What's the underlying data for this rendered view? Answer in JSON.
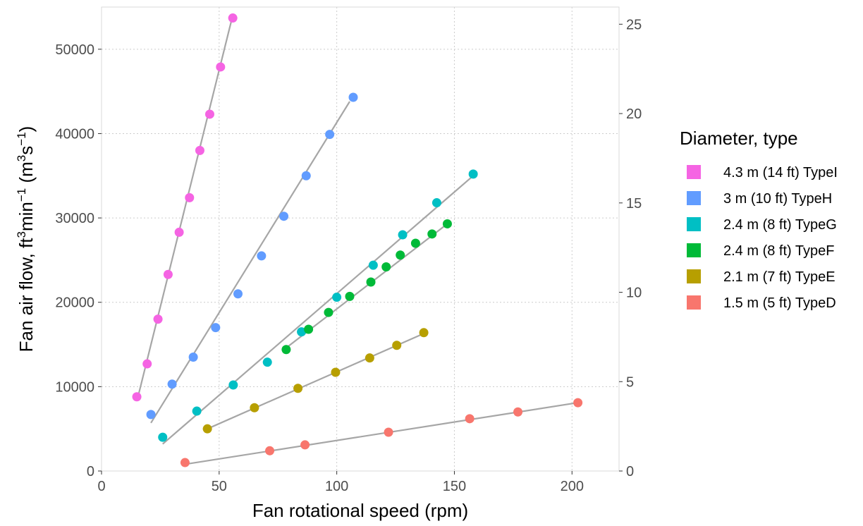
{
  "chart_data": {
    "type": "scatter",
    "xlabel": "Fan rotational speed (rpm)",
    "ylabel": {
      "part1": "Fan air flow, ft",
      "sup1": "3",
      "part2": "min",
      "sup2": "−1",
      "part3": " (m",
      "sup3": "3",
      "part4": "s",
      "sup4": "−1",
      "part5": ")"
    },
    "xlim": [
      0,
      220
    ],
    "ylim": [
      0,
      55000
    ],
    "y2lim": [
      0,
      25.96
    ],
    "x_ticks": [
      0,
      50,
      100,
      150,
      200
    ],
    "y_ticks": [
      0,
      10000,
      20000,
      30000,
      40000,
      50000
    ],
    "y2_ticks": [
      0,
      5,
      10,
      15,
      20,
      25
    ],
    "grid": true,
    "legend_title": "Diameter, type",
    "legend_position": "right",
    "series": [
      {
        "name": "4.3 m (14 ft) TypeI",
        "color": "#f564e3",
        "points": [
          [
            15.0,
            8800
          ],
          [
            19.4,
            12700
          ],
          [
            24.0,
            18000
          ],
          [
            28.3,
            23300
          ],
          [
            33.0,
            28300
          ],
          [
            37.4,
            32400
          ],
          [
            41.8,
            38000
          ],
          [
            46.0,
            42300
          ],
          [
            50.6,
            47900
          ],
          [
            55.8,
            53700
          ]
        ],
        "fit": [
          [
            15.5,
            8800
          ],
          [
            55.5,
            53700
          ]
        ]
      },
      {
        "name": "3 m (10 ft) TypeH",
        "color": "#619cff",
        "points": [
          [
            21.0,
            6700
          ],
          [
            30.0,
            10300
          ],
          [
            39.0,
            13500
          ],
          [
            48.5,
            17000
          ],
          [
            58.0,
            21000
          ],
          [
            68.0,
            25500
          ],
          [
            77.5,
            30200
          ],
          [
            87.0,
            35000
          ],
          [
            97.0,
            39900
          ],
          [
            107.0,
            44300
          ]
        ],
        "fit": [
          [
            21.0,
            5700
          ],
          [
            105.5,
            43800
          ]
        ]
      },
      {
        "name": "2.4 m (8 ft) TypeG",
        "color": "#00bfc4",
        "points": [
          [
            26.0,
            4000
          ],
          [
            40.5,
            7100
          ],
          [
            56.0,
            10200
          ],
          [
            70.5,
            12900
          ],
          [
            85.0,
            16500
          ],
          [
            100.0,
            20600
          ],
          [
            115.5,
            24400
          ],
          [
            128.0,
            28000
          ],
          [
            142.5,
            31800
          ],
          [
            158.0,
            35200
          ]
        ],
        "fit": [
          [
            26.0,
            3200
          ],
          [
            158.0,
            35000
          ]
        ]
      },
      {
        "name": "2.4 m (8 ft) TypeF",
        "color": "#00ba38",
        "points": [
          [
            78.5,
            14400
          ],
          [
            88.0,
            16800
          ],
          [
            96.5,
            18800
          ],
          [
            105.5,
            20700
          ],
          [
            114.5,
            22400
          ],
          [
            121.0,
            24200
          ],
          [
            127.0,
            25600
          ],
          [
            133.5,
            27000
          ],
          [
            140.5,
            28100
          ],
          [
            147.0,
            29300
          ]
        ],
        "fit": [
          [
            78.5,
            14600
          ],
          [
            147.0,
            29300
          ]
        ]
      },
      {
        "name": "2.1 m (7 ft) TypeE",
        "color": "#b79f00",
        "points": [
          [
            45.0,
            5000
          ],
          [
            65.0,
            7500
          ],
          [
            83.5,
            9800
          ],
          [
            99.5,
            11700
          ],
          [
            114.0,
            13400
          ],
          [
            125.5,
            14900
          ],
          [
            137.0,
            16400
          ]
        ],
        "fit": [
          [
            45.0,
            5000
          ],
          [
            137.0,
            16300
          ]
        ]
      },
      {
        "name": "1.5 m (5 ft) TypeD",
        "color": "#f8766d",
        "points": [
          [
            35.5,
            1000
          ],
          [
            71.5,
            2400
          ],
          [
            86.5,
            3100
          ],
          [
            122.0,
            4600
          ],
          [
            156.5,
            6200
          ],
          [
            177.0,
            7000
          ],
          [
            202.5,
            8100
          ]
        ],
        "fit": [
          [
            35.5,
            800
          ],
          [
            202.5,
            8100
          ]
        ]
      }
    ]
  }
}
